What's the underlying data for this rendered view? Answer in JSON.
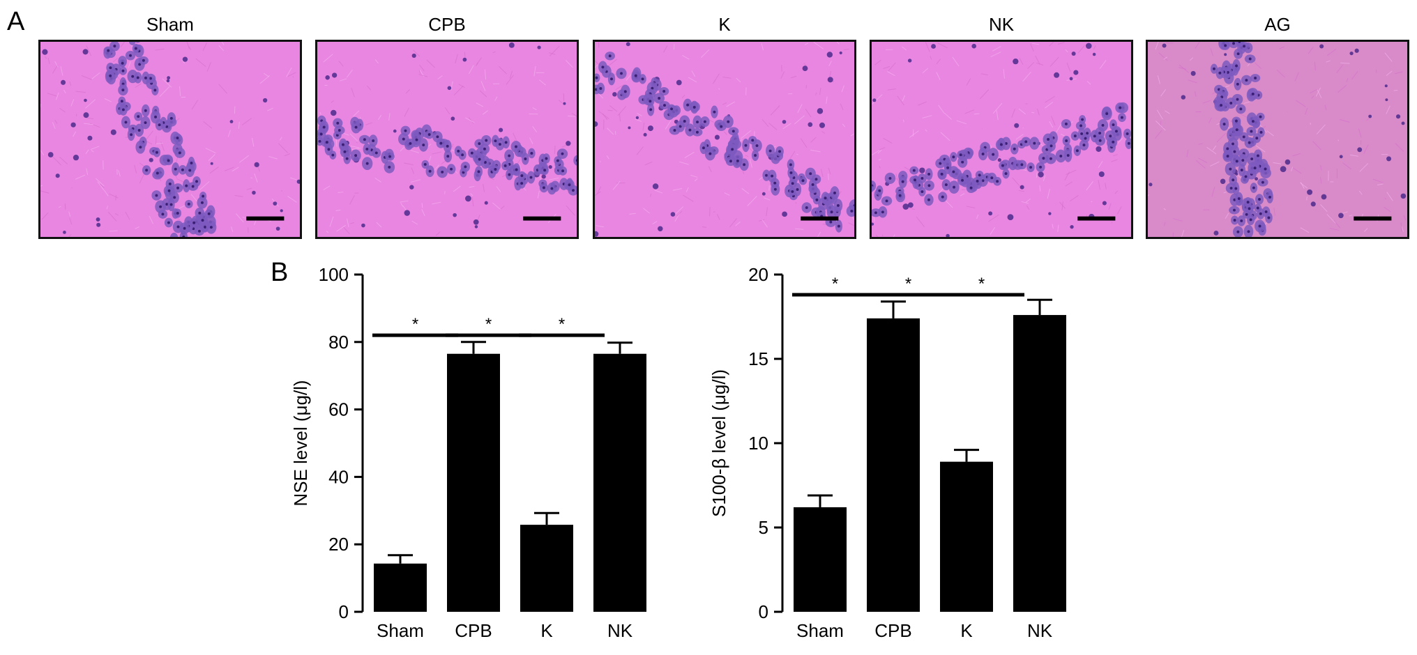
{
  "panels": {
    "a_letter": "A",
    "b_letter": "B"
  },
  "micrographs": [
    {
      "title": "Sham"
    },
    {
      "title": "CPB"
    },
    {
      "title": "K"
    },
    {
      "title": "NK"
    },
    {
      "title": "AG"
    }
  ],
  "colors": {
    "stain_background": "#e986e1",
    "stain_background_ag": "#d98bc9",
    "nuclei": "#5a3aa0",
    "bars": "#000000"
  },
  "chart_data": [
    {
      "type": "bar",
      "categories": [
        "Sham",
        "CPB",
        "K",
        "NK"
      ],
      "values": [
        14.3,
        76.5,
        25.8,
        76.5
      ],
      "errors": [
        2.5,
        3.5,
        3.5,
        3.3
      ],
      "ylabel": "NSE level (μg/l)",
      "ylim": [
        0,
        100
      ],
      "yticks": [
        0,
        20,
        40,
        60,
        80,
        100
      ],
      "grid": false,
      "significance": [
        {
          "from": 0,
          "to": 1,
          "label": "*",
          "y": 82
        },
        {
          "from": 1,
          "to": 2,
          "label": "*",
          "y": 82
        },
        {
          "from": 2,
          "to": 3,
          "label": "*",
          "y": 82
        }
      ]
    },
    {
      "type": "bar",
      "categories": [
        "Sham",
        "CPB",
        "K",
        "NK"
      ],
      "values": [
        6.2,
        17.4,
        8.9,
        17.6
      ],
      "errors": [
        0.7,
        1.0,
        0.7,
        0.9
      ],
      "ylabel": "S100-β level (μg/l)",
      "ylim": [
        0,
        20
      ],
      "yticks": [
        0,
        5,
        10,
        15,
        20
      ],
      "grid": false,
      "significance": [
        {
          "from": 0,
          "to": 1,
          "label": "*",
          "y": 18.8
        },
        {
          "from": 1,
          "to": 2,
          "label": "*",
          "y": 18.8
        },
        {
          "from": 2,
          "to": 3,
          "label": "*",
          "y": 18.8
        }
      ]
    }
  ]
}
